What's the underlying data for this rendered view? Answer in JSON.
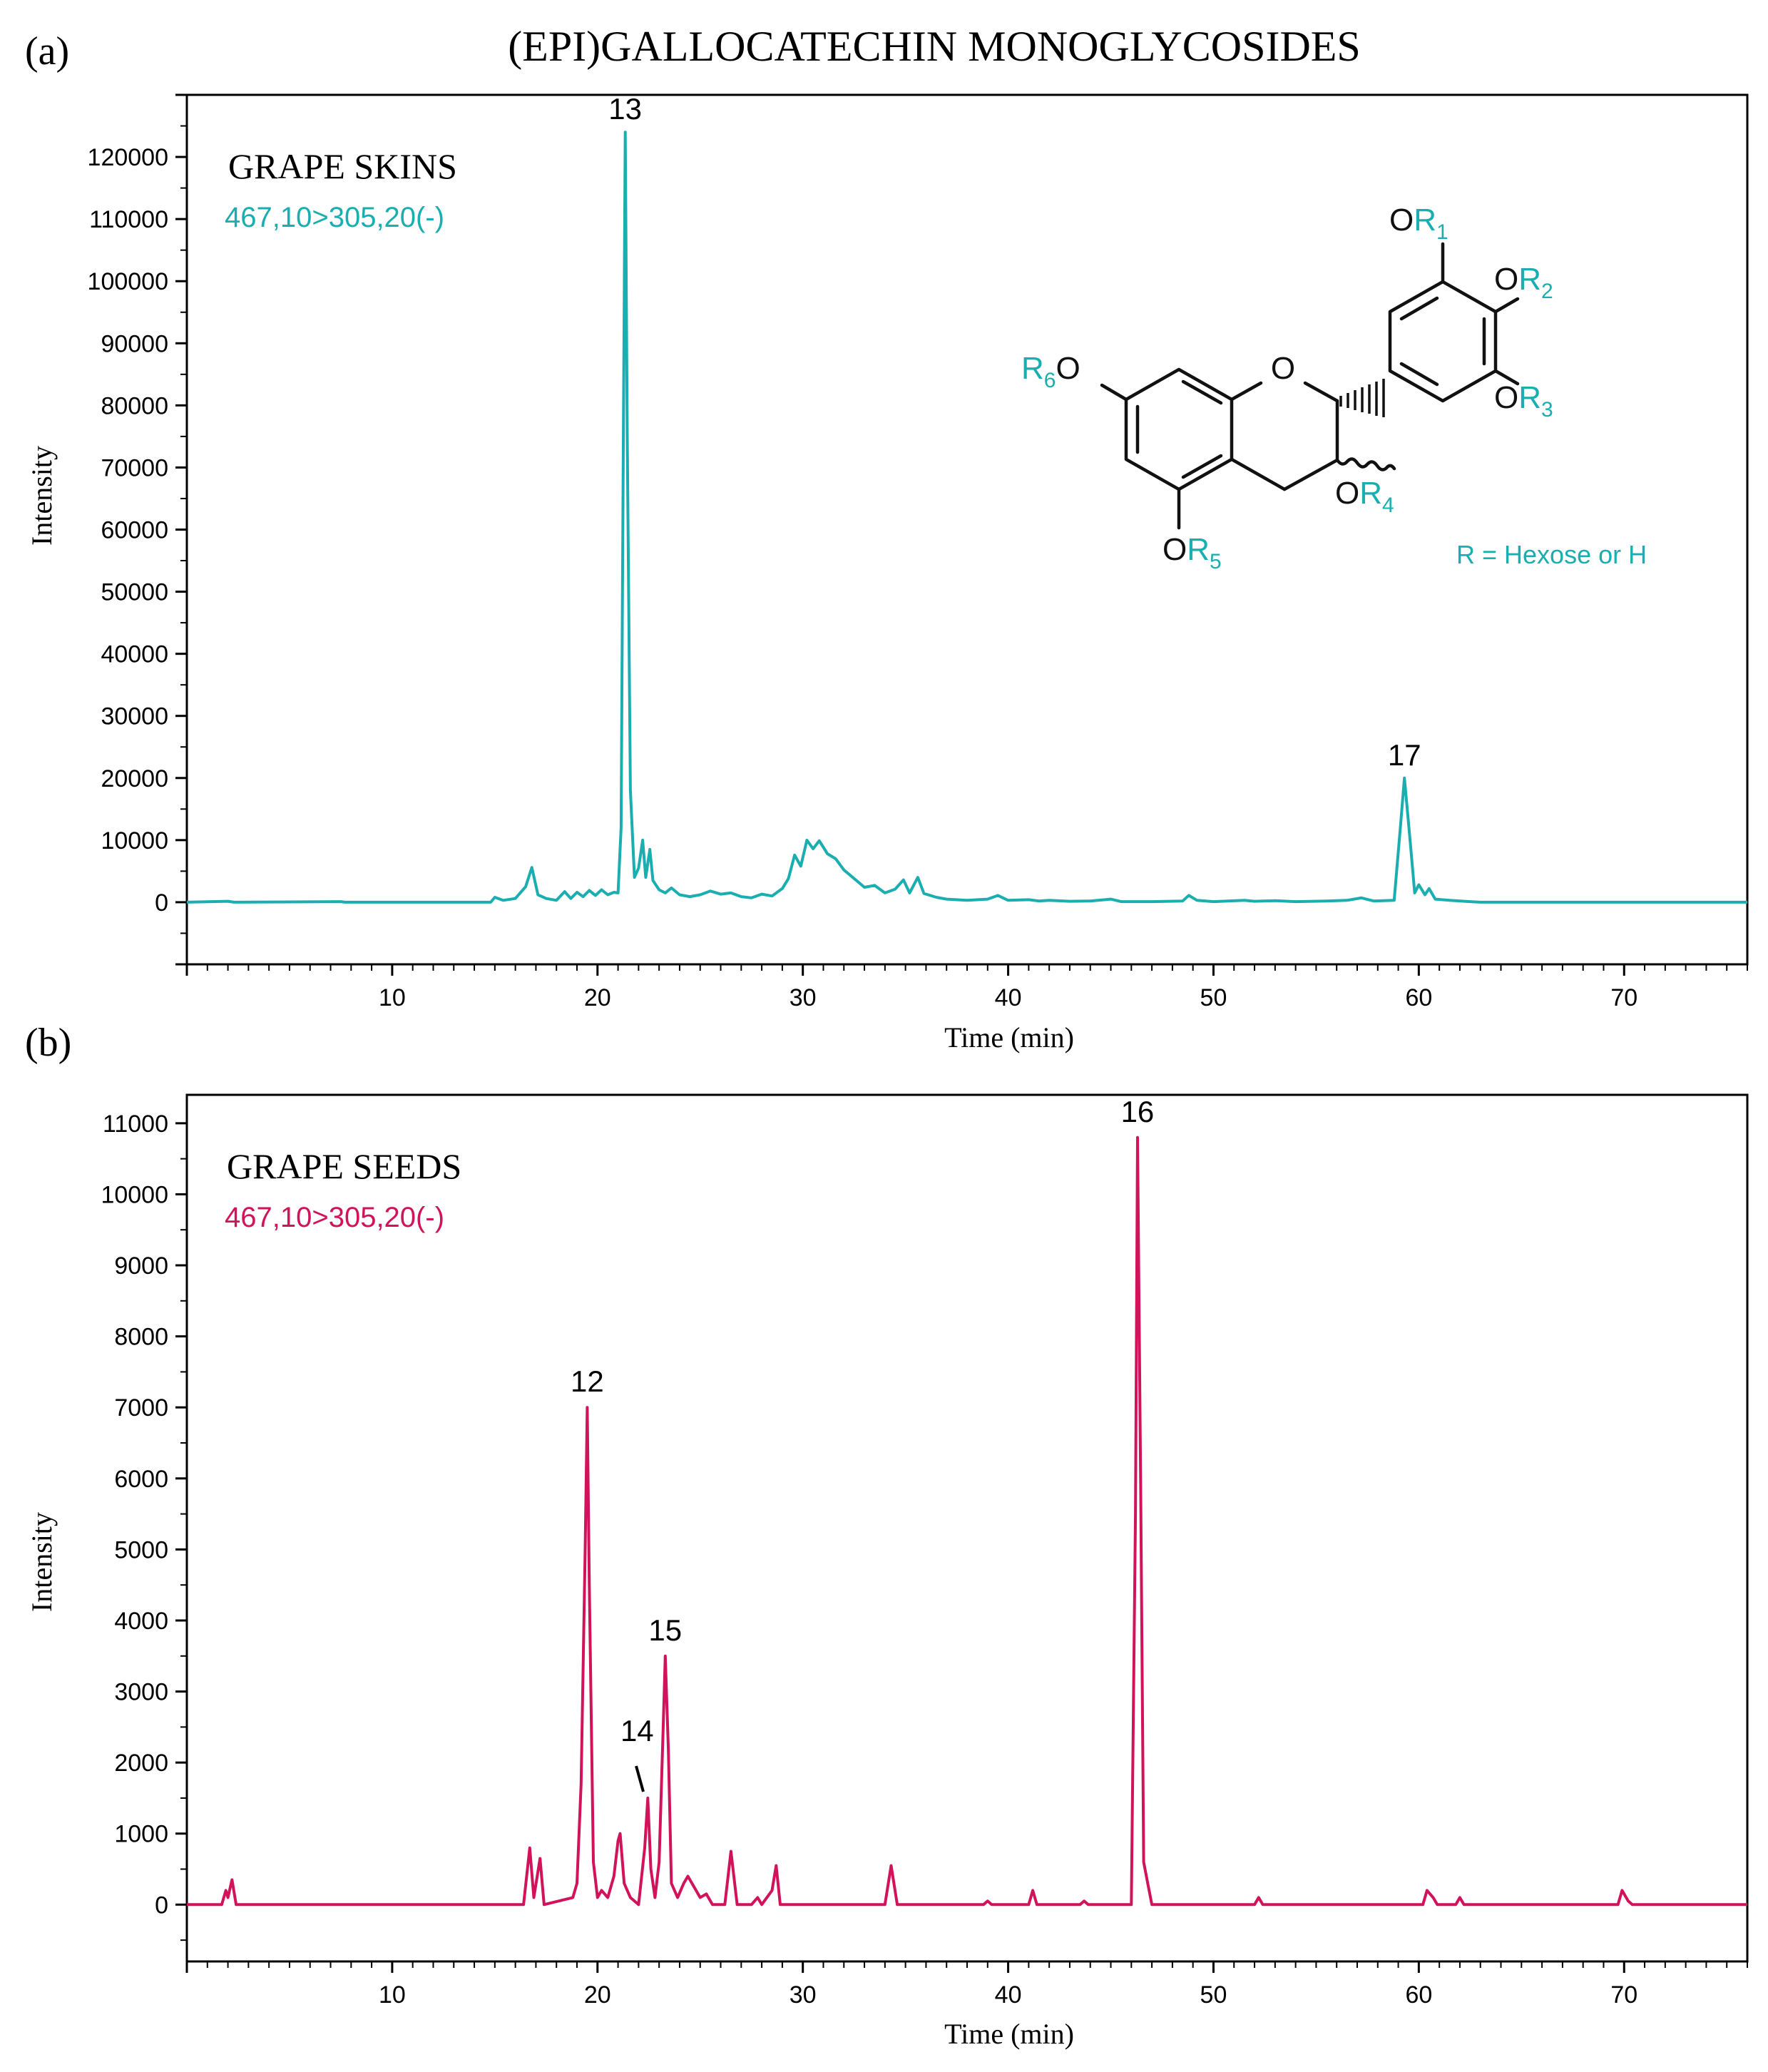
{
  "figure_title": "(EPI)GALLOCATECHIN  MONOGLYCOSIDES",
  "structure": {
    "ring_oxygen": "O",
    "groups": [
      {
        "o": "O",
        "r": "R",
        "n": "1"
      },
      {
        "o": "O",
        "r": "R",
        "n": "2"
      },
      {
        "o": "O",
        "r": "R",
        "n": "3"
      },
      {
        "o": "O",
        "r": "R",
        "n": "4"
      },
      {
        "o": "O",
        "r": "R",
        "n": "5"
      },
      {
        "r": "R",
        "n": "6",
        "o": "O"
      }
    ],
    "note": "R = Hexose or H"
  },
  "colors": {
    "skins": "#1aaeb0",
    "seeds": "#d0135a",
    "axis": "#000000"
  },
  "chart_data": [
    {
      "type": "line",
      "panel_label": "(a)",
      "sample_label": "GRAPE SKINS",
      "transition_label": "467,10>305,20(-)",
      "xlabel": "Time (min)",
      "ylabel": "Intensity",
      "xlim": [
        0,
        76
      ],
      "ylim": [
        -10000,
        130000
      ],
      "x_ticks": [
        10,
        20,
        30,
        40,
        50,
        60,
        70
      ],
      "y_ticks": [
        0,
        10000,
        20000,
        30000,
        40000,
        50000,
        60000,
        70000,
        80000,
        90000,
        100000,
        110000,
        120000
      ],
      "series": [
        {
          "color": "#1aaeb0",
          "points": [
            [
              0,
              0
            ],
            [
              2.0,
              150
            ],
            [
              2.3,
              0
            ],
            [
              7.5,
              100
            ],
            [
              7.7,
              0
            ],
            [
              14.8,
              0
            ],
            [
              15.0,
              800
            ],
            [
              15.4,
              300
            ],
            [
              16.0,
              600
            ],
            [
              16.5,
              2500
            ],
            [
              16.8,
              5600
            ],
            [
              17.1,
              1200
            ],
            [
              17.5,
              600
            ],
            [
              18.0,
              300
            ],
            [
              18.4,
              1700
            ],
            [
              18.7,
              600
            ],
            [
              19.0,
              1600
            ],
            [
              19.3,
              900
            ],
            [
              19.6,
              1900
            ],
            [
              19.9,
              1100
            ],
            [
              20.2,
              2000
            ],
            [
              20.5,
              1200
            ],
            [
              20.8,
              1600
            ],
            [
              21.0,
              1500
            ],
            [
              21.15,
              12000
            ],
            [
              21.25,
              70000
            ],
            [
              21.35,
              124000
            ],
            [
              21.45,
              75000
            ],
            [
              21.6,
              18000
            ],
            [
              21.8,
              4000
            ],
            [
              22.0,
              5500
            ],
            [
              22.2,
              10000
            ],
            [
              22.35,
              4000
            ],
            [
              22.55,
              8500
            ],
            [
              22.7,
              3500
            ],
            [
              23.0,
              2000
            ],
            [
              23.3,
              1500
            ],
            [
              23.6,
              2300
            ],
            [
              24.0,
              1200
            ],
            [
              24.5,
              900
            ],
            [
              25.0,
              1200
            ],
            [
              25.5,
              1800
            ],
            [
              26.0,
              1300
            ],
            [
              26.5,
              1500
            ],
            [
              27.0,
              900
            ],
            [
              27.5,
              700
            ],
            [
              28.0,
              1300
            ],
            [
              28.5,
              1000
            ],
            [
              29.0,
              2200
            ],
            [
              29.3,
              3800
            ],
            [
              29.6,
              7600
            ],
            [
              29.9,
              5800
            ],
            [
              30.2,
              10000
            ],
            [
              30.5,
              8600
            ],
            [
              30.8,
              9900
            ],
            [
              31.2,
              7800
            ],
            [
              31.6,
              7000
            ],
            [
              32.0,
              5200
            ],
            [
              32.5,
              3800
            ],
            [
              33.0,
              2400
            ],
            [
              33.5,
              2700
            ],
            [
              34.0,
              1500
            ],
            [
              34.5,
              2100
            ],
            [
              34.9,
              3600
            ],
            [
              35.2,
              1500
            ],
            [
              35.6,
              4000
            ],
            [
              35.9,
              1400
            ],
            [
              36.5,
              800
            ],
            [
              37.0,
              500
            ],
            [
              38.0,
              300
            ],
            [
              39.0,
              500
            ],
            [
              39.5,
              1100
            ],
            [
              40.0,
              300
            ],
            [
              41.0,
              400
            ],
            [
              41.5,
              200
            ],
            [
              42.0,
              300
            ],
            [
              43.0,
              150
            ],
            [
              44.0,
              200
            ],
            [
              45.0,
              500
            ],
            [
              45.5,
              100
            ],
            [
              47.0,
              100
            ],
            [
              48.5,
              200
            ],
            [
              48.8,
              1100
            ],
            [
              49.2,
              300
            ],
            [
              50.0,
              100
            ],
            [
              51.5,
              300
            ],
            [
              52.0,
              150
            ],
            [
              53.0,
              250
            ],
            [
              54.0,
              100
            ],
            [
              55.5,
              200
            ],
            [
              56.5,
              300
            ],
            [
              57.2,
              700
            ],
            [
              57.8,
              200
            ],
            [
              58.8,
              300
            ],
            [
              59.1,
              12000
            ],
            [
              59.3,
              20000
            ],
            [
              59.6,
              9000
            ],
            [
              59.8,
              1500
            ],
            [
              60.0,
              2800
            ],
            [
              60.3,
              1200
            ],
            [
              60.5,
              2200
            ],
            [
              60.8,
              500
            ],
            [
              61.5,
              300
            ],
            [
              62.5,
              100
            ],
            [
              63.0,
              0
            ],
            [
              76,
              0
            ]
          ]
        }
      ],
      "annotations": [
        {
          "text": "13",
          "x": 21.35,
          "y": 124000
        },
        {
          "text": "17",
          "x": 59.3,
          "y": 20000
        }
      ]
    },
    {
      "type": "line",
      "panel_label": "(b)",
      "sample_label": "GRAPE SEEDS",
      "transition_label": "467,10>305,20(-)",
      "xlabel": "Time (min)",
      "ylabel": "Intensity",
      "xlim": [
        0,
        76
      ],
      "ylim": [
        -800,
        11400
      ],
      "x_ticks": [
        10,
        20,
        30,
        40,
        50,
        60,
        70
      ],
      "y_ticks": [
        0,
        1000,
        2000,
        3000,
        4000,
        5000,
        6000,
        7000,
        8000,
        9000,
        10000,
        11000
      ],
      "series": [
        {
          "color": "#d0135a",
          "points": [
            [
              0,
              0
            ],
            [
              1.7,
              0
            ],
            [
              1.9,
              200
            ],
            [
              2.0,
              100
            ],
            [
              2.2,
              350
            ],
            [
              2.4,
              0
            ],
            [
              16.4,
              0
            ],
            [
              16.7,
              800
            ],
            [
              16.9,
              100
            ],
            [
              17.2,
              650
            ],
            [
              17.4,
              0
            ],
            [
              18.8,
              100
            ],
            [
              19.0,
              300
            ],
            [
              19.2,
              1700
            ],
            [
              19.4,
              5000
            ],
            [
              19.5,
              7000
            ],
            [
              19.6,
              4500
            ],
            [
              19.8,
              600
            ],
            [
              20.0,
              100
            ],
            [
              20.2,
              200
            ],
            [
              20.5,
              100
            ],
            [
              20.8,
              400
            ],
            [
              21.0,
              900
            ],
            [
              21.1,
              1000
            ],
            [
              21.3,
              300
            ],
            [
              21.6,
              100
            ],
            [
              22.0,
              0
            ],
            [
              22.3,
              800
            ],
            [
              22.45,
              1500
            ],
            [
              22.6,
              500
            ],
            [
              22.8,
              100
            ],
            [
              23.0,
              600
            ],
            [
              23.2,
              2500
            ],
            [
              23.3,
              3500
            ],
            [
              23.45,
              2200
            ],
            [
              23.6,
              300
            ],
            [
              23.9,
              100
            ],
            [
              24.2,
              300
            ],
            [
              24.4,
              400
            ],
            [
              24.7,
              250
            ],
            [
              25.0,
              100
            ],
            [
              25.3,
              150
            ],
            [
              25.6,
              0
            ],
            [
              26.2,
              0
            ],
            [
              26.5,
              750
            ],
            [
              26.8,
              0
            ],
            [
              27.5,
              0
            ],
            [
              27.8,
              100
            ],
            [
              28.0,
              0
            ],
            [
              28.5,
              200
            ],
            [
              28.7,
              550
            ],
            [
              28.9,
              0
            ],
            [
              34.0,
              0
            ],
            [
              34.3,
              550
            ],
            [
              34.6,
              0
            ],
            [
              38.8,
              0
            ],
            [
              39.0,
              50
            ],
            [
              39.2,
              0
            ],
            [
              41.0,
              0
            ],
            [
              41.2,
              200
            ],
            [
              41.4,
              0
            ],
            [
              43.5,
              0
            ],
            [
              43.7,
              50
            ],
            [
              43.9,
              0
            ],
            [
              46.0,
              0
            ],
            [
              46.2,
              5500
            ],
            [
              46.3,
              10800
            ],
            [
              46.45,
              6000
            ],
            [
              46.6,
              600
            ],
            [
              46.8,
              300
            ],
            [
              47.0,
              0
            ],
            [
              52.0,
              0
            ],
            [
              52.2,
              100
            ],
            [
              52.4,
              0
            ],
            [
              60.2,
              0
            ],
            [
              60.4,
              200
            ],
            [
              60.7,
              100
            ],
            [
              60.9,
              0
            ],
            [
              61.8,
              0
            ],
            [
              62.0,
              100
            ],
            [
              62.2,
              0
            ],
            [
              69.7,
              0
            ],
            [
              69.9,
              200
            ],
            [
              70.2,
              50
            ],
            [
              70.4,
              0
            ],
            [
              76,
              0
            ]
          ]
        }
      ],
      "annotations": [
        {
          "text": "12",
          "x": 19.5,
          "y": 7000
        },
        {
          "text": "14",
          "x": 22.45,
          "y": 1500
        },
        {
          "text": "15",
          "x": 23.3,
          "y": 3500
        },
        {
          "text": "16",
          "x": 46.3,
          "y": 10800
        }
      ]
    }
  ]
}
